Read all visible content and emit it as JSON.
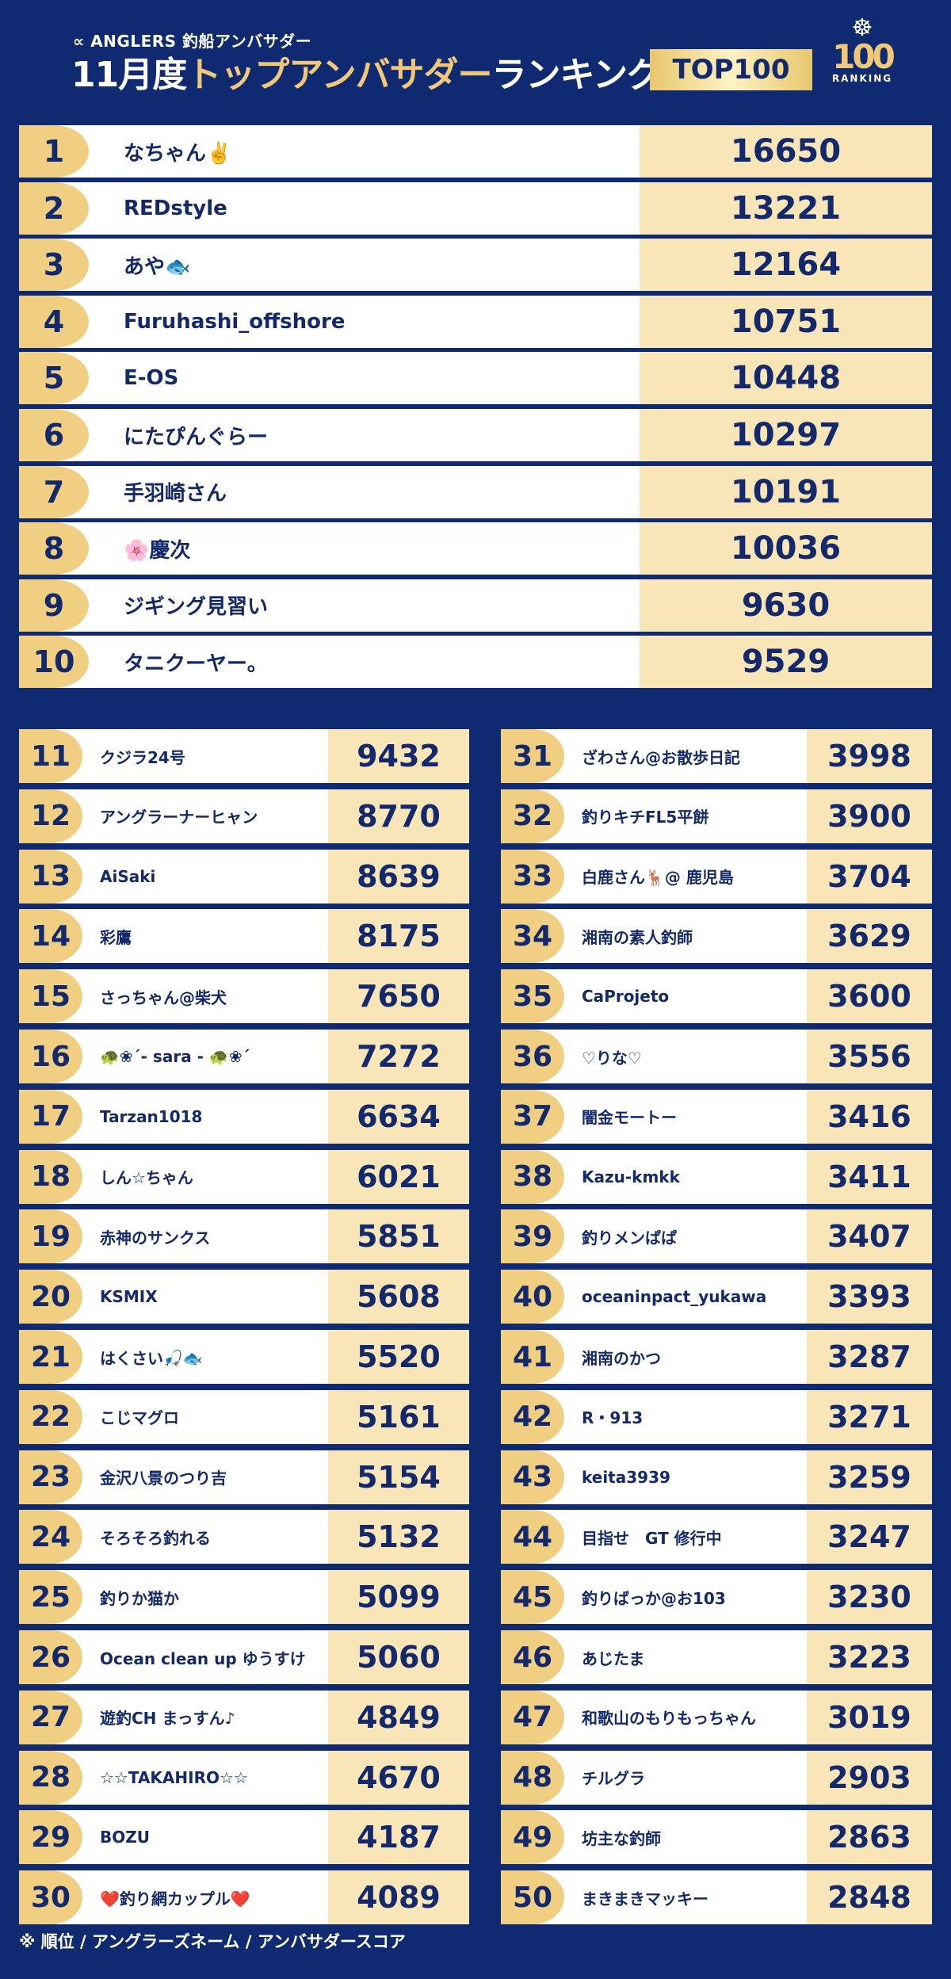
{
  "header": {
    "brand": "∝ ANGLERS 釣船アンバサダー",
    "title_prefix": "11月度",
    "title_gold": "トップアンバサダー",
    "title_suffix": "ランキング",
    "badge": "TOP100",
    "logo_number": "100",
    "logo_caption": "RANKING"
  },
  "top10": [
    {
      "rank": "1",
      "name": "なちゃん✌️",
      "score": "16650"
    },
    {
      "rank": "2",
      "name": "REDstyle",
      "score": "13221"
    },
    {
      "rank": "3",
      "name": "あや🐟",
      "score": "12164"
    },
    {
      "rank": "4",
      "name": "Furuhashi_offshore",
      "score": "10751"
    },
    {
      "rank": "5",
      "name": "E-OS",
      "score": "10448"
    },
    {
      "rank": "6",
      "name": "にたぴんぐらー",
      "score": "10297"
    },
    {
      "rank": "7",
      "name": "手羽崎さん",
      "score": "10191"
    },
    {
      "rank": "8",
      "name": "🌸慶次",
      "score": "10036"
    },
    {
      "rank": "9",
      "name": "ジギング見習い",
      "score": "9630"
    },
    {
      "rank": "10",
      "name": "タニクーヤー。",
      "score": "9529"
    }
  ],
  "left": [
    {
      "rank": "11",
      "name": "クジラ24号",
      "score": "9432"
    },
    {
      "rank": "12",
      "name": "アングラーナーヒャン",
      "score": "8770"
    },
    {
      "rank": "13",
      "name": "AiSaki",
      "score": "8639"
    },
    {
      "rank": "14",
      "name": "彩鷹",
      "score": "8175"
    },
    {
      "rank": "15",
      "name": "さっちゃん@柴犬",
      "score": "7650"
    },
    {
      "rank": "16",
      "name": "🐢❀´- sara - 🐢❀´",
      "score": "7272"
    },
    {
      "rank": "17",
      "name": "Tarzan1018",
      "score": "6634"
    },
    {
      "rank": "18",
      "name": "しん☆ちゃん",
      "score": "6021"
    },
    {
      "rank": "19",
      "name": "赤神のサンクス",
      "score": "5851"
    },
    {
      "rank": "20",
      "name": "KSMIX",
      "score": "5608"
    },
    {
      "rank": "21",
      "name": "はくさい🎣🐟",
      "score": "5520"
    },
    {
      "rank": "22",
      "name": "こじマグロ",
      "score": "5161"
    },
    {
      "rank": "23",
      "name": "金沢八景のつり吉",
      "score": "5154"
    },
    {
      "rank": "24",
      "name": "そろそろ釣れる",
      "score": "5132"
    },
    {
      "rank": "25",
      "name": "釣りか猫か",
      "score": "5099"
    },
    {
      "rank": "26",
      "name": "Ocean clean up ゆうすけ",
      "score": "5060"
    },
    {
      "rank": "27",
      "name": "遊釣CH まっすん♪",
      "score": "4849"
    },
    {
      "rank": "28",
      "name": "☆☆TAKAHIRO☆☆",
      "score": "4670"
    },
    {
      "rank": "29",
      "name": "BOZU",
      "score": "4187"
    },
    {
      "rank": "30",
      "name": "❤️釣り網カップル❤️",
      "score": "4089"
    }
  ],
  "right": [
    {
      "rank": "31",
      "name": "ざわさん@お散歩日記",
      "score": "3998"
    },
    {
      "rank": "32",
      "name": "釣りキチFL5平餅",
      "score": "3900"
    },
    {
      "rank": "33",
      "name": "白鹿さん🦌@ 鹿児島",
      "score": "3704"
    },
    {
      "rank": "34",
      "name": "湘南の素人釣師",
      "score": "3629"
    },
    {
      "rank": "35",
      "name": "CaProjeto",
      "score": "3600"
    },
    {
      "rank": "36",
      "name": "♡りな♡",
      "score": "3556"
    },
    {
      "rank": "37",
      "name": "闇金モートー",
      "score": "3416"
    },
    {
      "rank": "38",
      "name": "Kazu-kmkk",
      "score": "3411"
    },
    {
      "rank": "39",
      "name": "釣りメンぱぱ",
      "score": "3407"
    },
    {
      "rank": "40",
      "name": "oceaninpact_yukawa",
      "score": "3393"
    },
    {
      "rank": "41",
      "name": "湘南のかつ",
      "score": "3287"
    },
    {
      "rank": "42",
      "name": "R・913",
      "score": "3271"
    },
    {
      "rank": "43",
      "name": "keita3939",
      "score": "3259"
    },
    {
      "rank": "44",
      "name": "目指せ　GT 修行中",
      "score": "3247"
    },
    {
      "rank": "45",
      "name": "釣りばっか@お103",
      "score": "3230"
    },
    {
      "rank": "46",
      "name": "あじたま",
      "score": "3223"
    },
    {
      "rank": "47",
      "name": "和歌山のもりもっちゃん",
      "score": "3019"
    },
    {
      "rank": "48",
      "name": "チルグラ",
      "score": "2903"
    },
    {
      "rank": "49",
      "name": "坊主な釣師",
      "score": "2863"
    },
    {
      "rank": "50",
      "name": "まきまきマッキー",
      "score": "2848"
    }
  ],
  "footnote": "※ 順位 / アングラーズネーム / アンバサダースコア",
  "colors": {
    "background": "#102a72",
    "gold": "#f0cf82",
    "score_bg": "#f8e5b8",
    "text": "#13296b"
  }
}
